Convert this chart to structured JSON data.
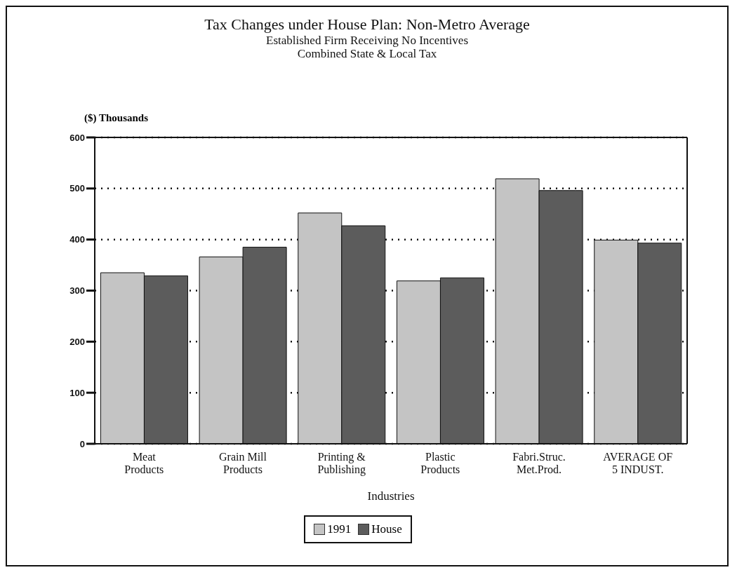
{
  "chart_data": {
    "type": "bar",
    "title": "Tax Changes under House Plan: Non-Metro Average",
    "subtitle": "Established Firm Receiving No Incentives\nCombined State & Local Tax",
    "ylabel": "($) Thousands",
    "xlabel": "Industries",
    "categories": [
      "Meat\nProducts",
      "Grain Mill\nProducts",
      "Printing &\nPublishing",
      "Plastic\nProducts",
      "Fabri.Struc.\nMet.Prod.",
      "AVERAGE OF\n5 INDUST."
    ],
    "series": [
      {
        "name": "1991",
        "color": "#c4c4c4",
        "values": [
          335,
          366,
          452,
          319,
          519,
          399
        ]
      },
      {
        "name": "House",
        "color": "#5c5c5c",
        "values": [
          329,
          385,
          427,
          325,
          496,
          393
        ]
      }
    ],
    "ylim": [
      0,
      600
    ],
    "yticks": [
      0,
      100,
      200,
      300,
      400,
      500,
      600
    ],
    "grid": "y",
    "line_style": "dotted",
    "legend": "bottom"
  }
}
